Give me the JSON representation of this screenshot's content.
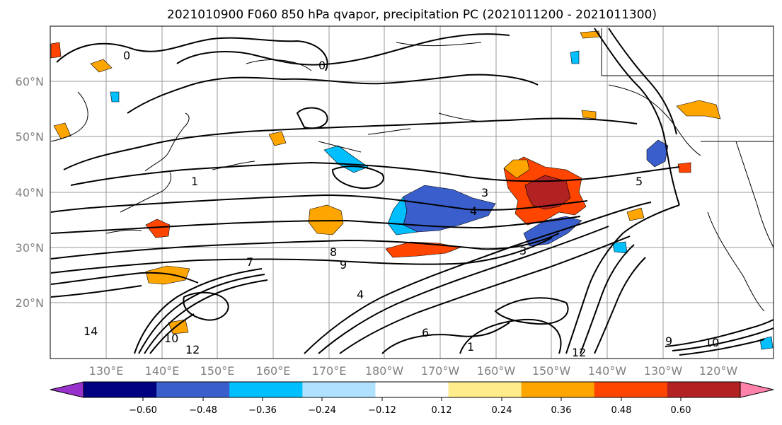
{
  "title": "2021010900 F060 850 hPa qvapor, precipitation PC (2021011200 - 2021011300)",
  "lat_labels": [
    "60°N",
    "50°N",
    "40°N",
    "30°N",
    "20°N"
  ],
  "lon_labels": [
    "130°E",
    "140°E",
    "150°E",
    "160°E",
    "170°E",
    "180°W",
    "170°W",
    "160°W",
    "150°W",
    "140°W",
    "130°W",
    "120°W"
  ],
  "colorbar": {
    "colors": [
      "#9932cc",
      "#000080",
      "#3a5fcd",
      "#00bfff",
      "#b0e2ff",
      "#ffffff",
      "#ffec8b",
      "#ffa500",
      "#ff4500",
      "#b22222",
      "#ff82ab"
    ],
    "tick_labels": [
      "−0.60",
      "−0.48",
      "−0.36",
      "−0.24",
      "−0.12",
      "0.12",
      "0.24",
      "0.36",
      "0.48",
      "0.60"
    ]
  },
  "contour_labels": [
    "0",
    "0",
    "1",
    "3",
    "4",
    "5",
    "7",
    "8",
    "9",
    "4",
    "3",
    "1",
    "14",
    "10",
    "12",
    "9",
    "6",
    "12",
    "10"
  ]
}
